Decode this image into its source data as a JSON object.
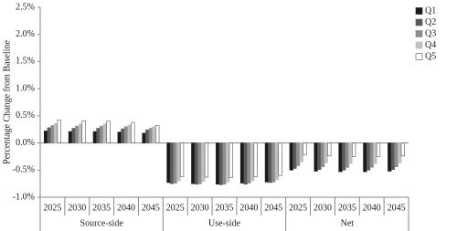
{
  "chart_data": {
    "type": "bar",
    "y_label": "Percentage Change from Baseline",
    "categories": [
      "2025",
      "2030",
      "2035",
      "2040",
      "2045",
      "2025",
      "2030",
      "2035",
      "2040",
      "2045",
      "2025",
      "2030",
      "2035",
      "2040",
      "2045"
    ],
    "groups": [
      "Source-side",
      "Use-side",
      "Net"
    ],
    "series": [
      {
        "name": "Q1",
        "color": "#1a1a1a",
        "values": [
          0.22,
          0.21,
          0.21,
          0.2,
          0.18,
          -0.73,
          -0.75,
          -0.76,
          -0.74,
          -0.72,
          -0.5,
          -0.52,
          -0.53,
          -0.53,
          -0.52
        ]
      },
      {
        "name": "Q2",
        "color": "#5a5a5a",
        "values": [
          0.28,
          0.27,
          0.27,
          0.26,
          0.24,
          -0.75,
          -0.76,
          -0.77,
          -0.76,
          -0.73,
          -0.47,
          -0.49,
          -0.5,
          -0.5,
          -0.49
        ]
      },
      {
        "name": "Q3",
        "color": "#8c8c8c",
        "values": [
          0.32,
          0.31,
          0.31,
          0.3,
          0.27,
          -0.74,
          -0.75,
          -0.76,
          -0.74,
          -0.72,
          -0.42,
          -0.44,
          -0.45,
          -0.45,
          -0.44
        ]
      },
      {
        "name": "Q4",
        "color": "#c0c0c0",
        "values": [
          0.36,
          0.35,
          0.35,
          0.33,
          0.3,
          -0.7,
          -0.71,
          -0.72,
          -0.7,
          -0.68,
          -0.35,
          -0.37,
          -0.38,
          -0.38,
          -0.37
        ]
      },
      {
        "name": "Q5",
        "color": "#ffffff",
        "values": [
          0.42,
          0.41,
          0.4,
          0.38,
          0.32,
          -0.62,
          -0.63,
          -0.64,
          -0.62,
          -0.6,
          -0.22,
          -0.24,
          -0.25,
          -0.25,
          -0.24
        ]
      }
    ],
    "ylim": [
      -1.0,
      2.5
    ],
    "yticks": [
      {
        "value": -1.0,
        "label": "-1.0%"
      },
      {
        "value": -0.5,
        "label": "-0.5%"
      },
      {
        "value": 0,
        "label": "0.0%"
      },
      {
        "value": 0.5,
        "label": "0.5%"
      },
      {
        "value": 1.0,
        "label": "1.0%"
      },
      {
        "value": 1.5,
        "label": "1.5%"
      },
      {
        "value": 2.0,
        "label": "2.0%"
      },
      {
        "value": 2.5,
        "label": "2.5%"
      }
    ],
    "legend": "right"
  }
}
